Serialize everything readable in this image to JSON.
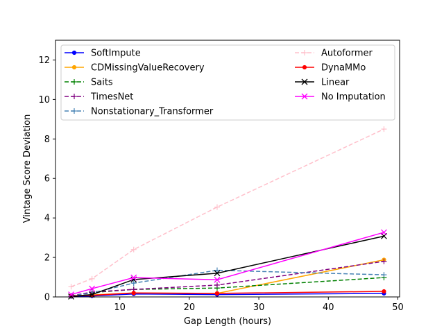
{
  "chart_data": {
    "type": "line",
    "xlabel": "Gap Length (hours)",
    "ylabel": "Vintage Score Deviation",
    "xlim": [
      0.75,
      50.25
    ],
    "ylim": [
      0,
      13
    ],
    "xticks": [
      10,
      20,
      30,
      40,
      50
    ],
    "yticks": [
      0,
      2,
      4,
      6,
      8,
      10,
      12
    ],
    "grid": false,
    "legend_position": "top",
    "x": [
      3,
      6,
      12,
      24,
      48
    ],
    "series": [
      {
        "name": "SoftImpute",
        "color": "#0000ff",
        "dash": "solid",
        "marker": "dot",
        "values": [
          0.02,
          0.05,
          0.15,
          0.12,
          0.18
        ]
      },
      {
        "name": "CDMissingValueRecovery",
        "color": "#ffa500",
        "dash": "solid",
        "marker": "dot",
        "values": [
          0.05,
          0.1,
          0.2,
          0.18,
          1.88
        ]
      },
      {
        "name": "Saits",
        "color": "#008000",
        "dash": "dashed",
        "marker": "plus",
        "values": [
          0.05,
          0.22,
          0.38,
          0.45,
          0.98
        ]
      },
      {
        "name": "TimesNet",
        "color": "#800080",
        "dash": "dashed",
        "marker": "plus",
        "values": [
          0.05,
          0.25,
          0.38,
          0.6,
          1.8
        ]
      },
      {
        "name": "Nonstationary_Transformer",
        "color": "#4682b4",
        "dash": "dashed",
        "marker": "plus",
        "values": [
          0.05,
          0.2,
          0.7,
          1.35,
          1.12
        ]
      },
      {
        "name": "Autoformer",
        "color": "#ffc0cb",
        "dash": "dashed",
        "marker": "plus",
        "values": [
          0.52,
          0.92,
          2.4,
          4.55,
          8.5
        ]
      },
      {
        "name": "DynaMMo",
        "color": "#ff0000",
        "dash": "solid",
        "marker": "dot",
        "values": [
          0.05,
          0.08,
          0.2,
          0.18,
          0.28
        ]
      },
      {
        "name": "Linear",
        "color": "#000000",
        "dash": "solid",
        "marker": "x",
        "values": [
          0.02,
          0.12,
          0.88,
          1.2,
          3.08
        ]
      },
      {
        "name": "No Imputation",
        "color": "#ff00ff",
        "dash": "solid",
        "marker": "x",
        "values": [
          0.12,
          0.42,
          0.98,
          0.87,
          3.27
        ]
      }
    ]
  }
}
